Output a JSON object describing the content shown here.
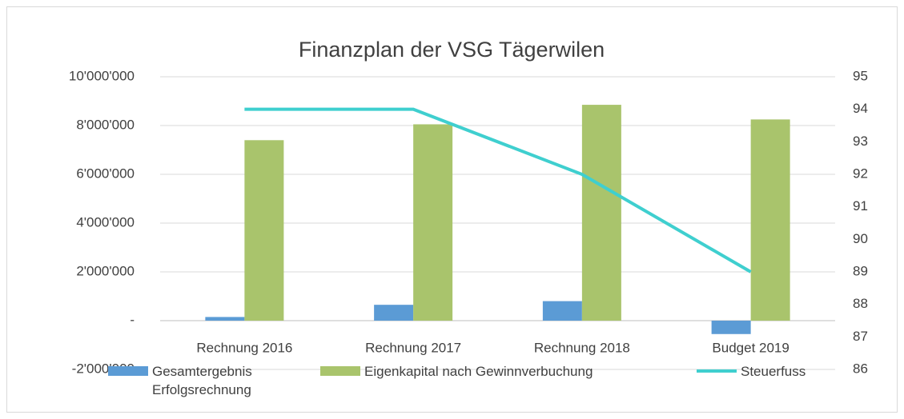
{
  "chart_data": {
    "type": "bar_line",
    "title": "Finanzplan der VSG Tägerwilen",
    "categories": [
      "Rechnung 2016",
      "Rechnung 2017",
      "Rechnung 2018",
      "Budget 2019"
    ],
    "series": [
      {
        "name": "Gesamtergebnis Erfolgsrechnung",
        "type": "bar",
        "color": "#5b9bd5",
        "values": [
          150000,
          650000,
          800000,
          -550000
        ]
      },
      {
        "name": "Eigenkapital nach Gewinnverbuchung",
        "type": "bar",
        "color": "#a9c46c",
        "values": [
          7400000,
          8050000,
          8850000,
          8250000
        ]
      },
      {
        "name": "Steuerfuss",
        "type": "line",
        "axis": "y2",
        "color": "#3fcfcf",
        "values": [
          94,
          94,
          92,
          89
        ]
      }
    ],
    "ylim": [
      -2000000,
      10000000
    ],
    "yticks": [
      {
        "value": -2000000,
        "label": "-2'000'000"
      },
      {
        "value": 0,
        "label": "-"
      },
      {
        "value": 2000000,
        "label": "2'000'000"
      },
      {
        "value": 4000000,
        "label": "4'000'000"
      },
      {
        "value": 6000000,
        "label": "6'000'000"
      },
      {
        "value": 8000000,
        "label": "8'000'000"
      },
      {
        "value": 10000000,
        "label": "10'000'000"
      }
    ],
    "y2lim": [
      86,
      95
    ],
    "y2ticks": [
      86,
      87,
      88,
      89,
      90,
      91,
      92,
      93,
      94,
      95
    ],
    "legend": "bottom"
  }
}
